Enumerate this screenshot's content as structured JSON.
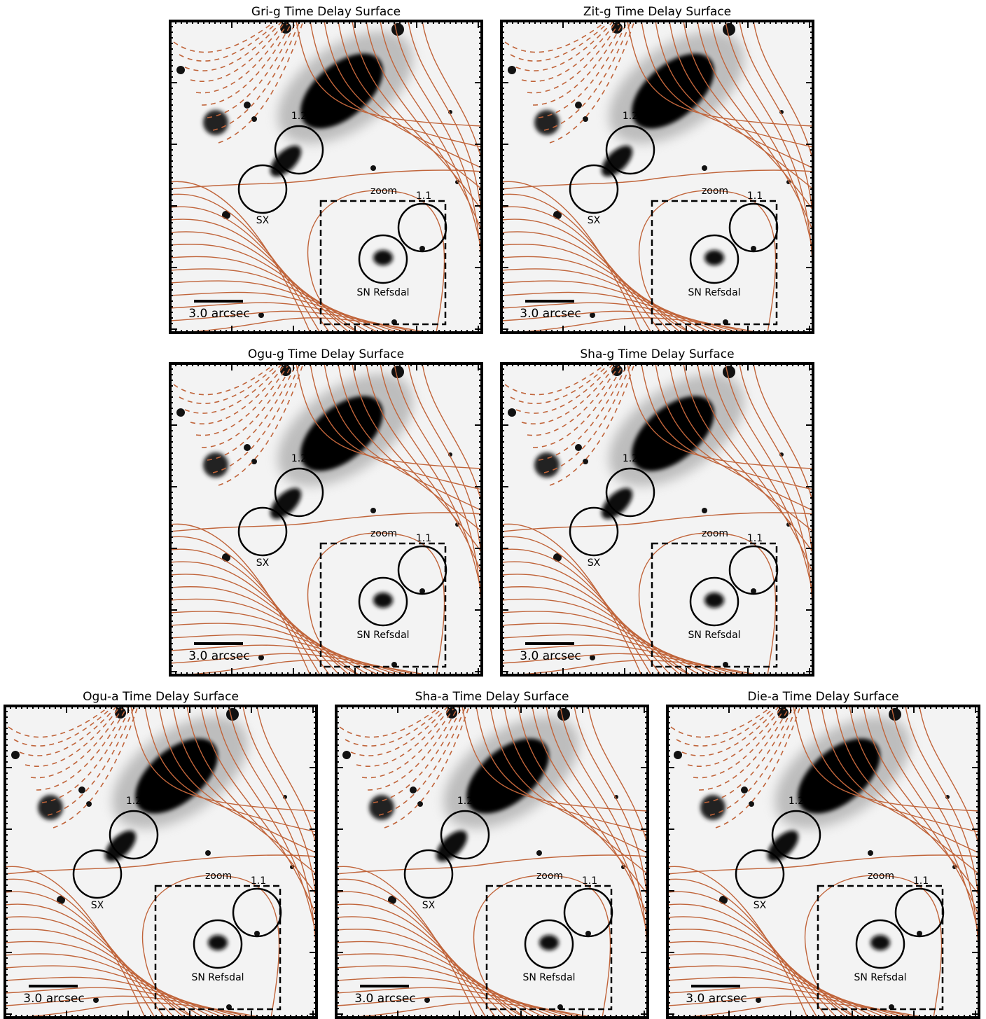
{
  "panels": [
    {
      "title": "Gri-g Time Delay Surface",
      "labels": {
        "region_12": "1.2",
        "sx": "SX",
        "zoom": "zoom",
        "region_11": "1.1",
        "sn": "SN Refsdal",
        "scale": "3.0 arcsec"
      }
    },
    {
      "title": "Zit-g Time Delay Surface",
      "labels": {
        "region_12": "1.2",
        "sx": "SX",
        "zoom": "zoom",
        "region_11": "1.1",
        "sn": "SN Refsdal",
        "scale": "3.0 arcsec"
      }
    },
    {
      "title": "Ogu-g Time Delay Surface",
      "labels": {
        "region_12": "1.2",
        "sx": "SX",
        "zoom": "zoom",
        "region_11": "1.1",
        "sn": "SN Refsdal",
        "scale": "3.0 arcsec"
      }
    },
    {
      "title": "Sha-g Time Delay Surface",
      "labels": {
        "region_12": "1.2",
        "sx": "SX",
        "zoom": "zoom",
        "region_11": "1.1",
        "sn": "SN Refsdal",
        "scale": "3.0 arcsec"
      }
    },
    {
      "title": "Ogu-a Time Delay Surface",
      "labels": {
        "region_12": "1.2",
        "sx": "SX",
        "zoom": "zoom",
        "region_11": "1.1",
        "sn": "SN Refsdal",
        "scale": "3.0 arcsec"
      }
    },
    {
      "title": "Sha-a Time Delay Surface",
      "labels": {
        "region_12": "1.2",
        "sx": "SX",
        "zoom": "zoom",
        "region_11": "1.1",
        "sn": "SN Refsdal",
        "scale": "3.0 arcsec"
      }
    },
    {
      "title": "Die-a Time Delay Surface",
      "labels": {
        "region_12": "1.2",
        "sx": "SX",
        "zoom": "zoom",
        "region_11": "1.1",
        "sn": "SN Refsdal",
        "scale": "3.0 arcsec"
      }
    }
  ]
}
